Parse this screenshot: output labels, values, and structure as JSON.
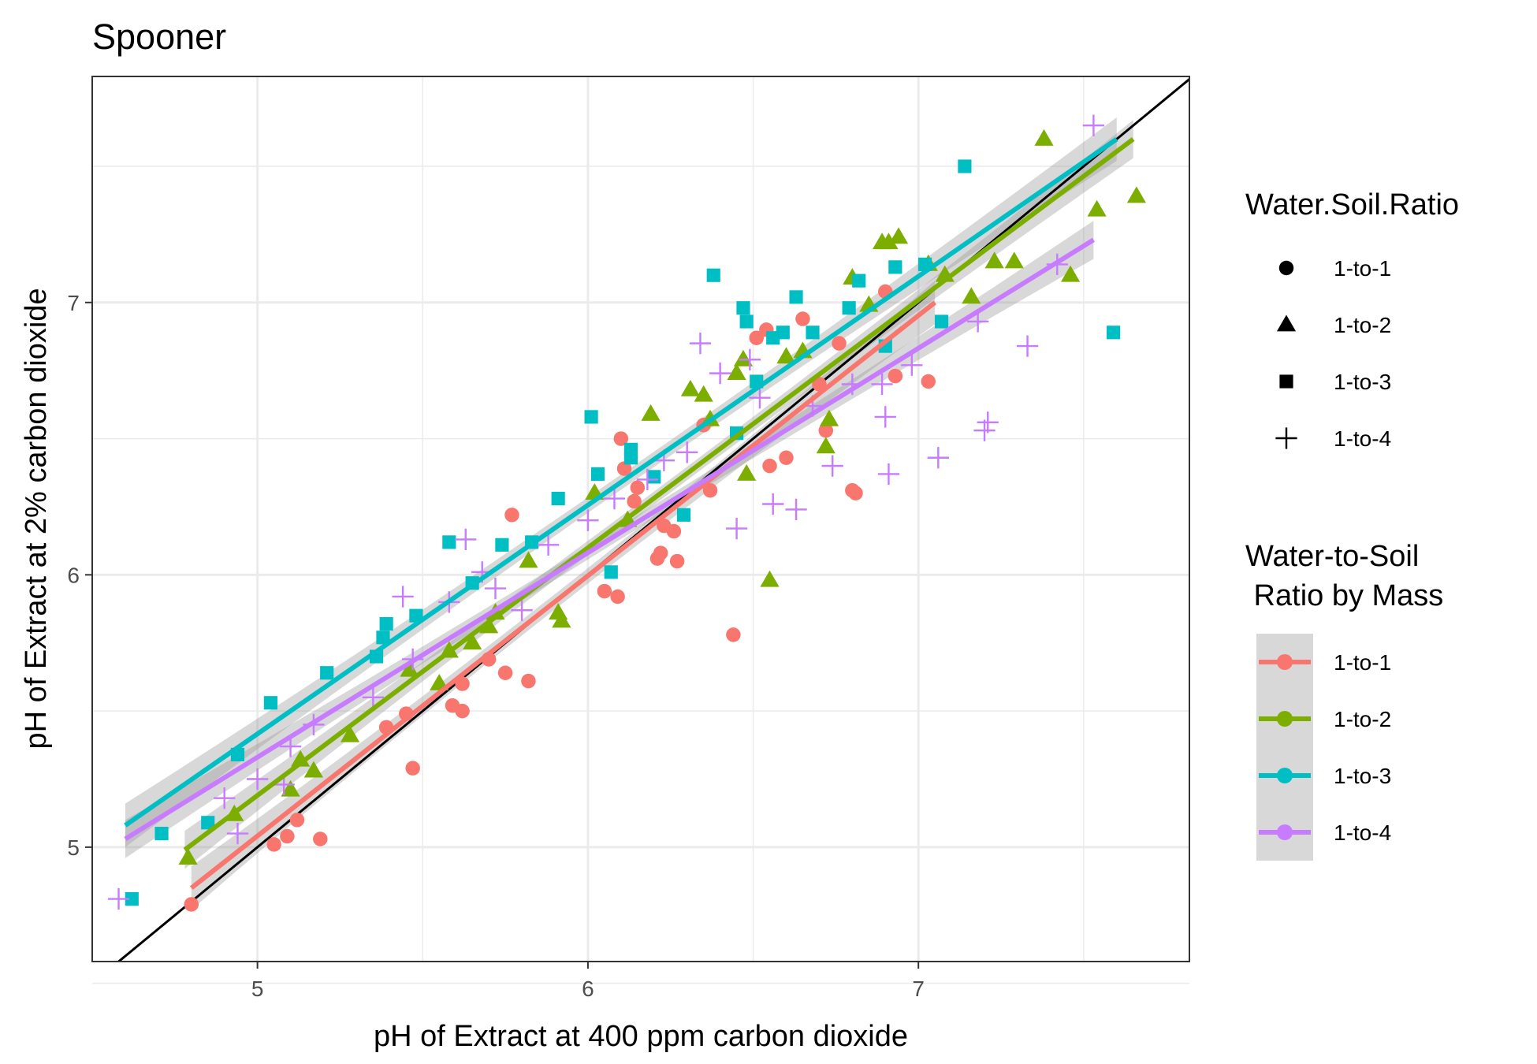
{
  "chart_data": {
    "type": "scatter",
    "title": "Spooner",
    "xlabel": "pH of Extract at 400 ppm carbon dioxide",
    "ylabel": "pH of Extract at 2% carbon dioxide",
    "xlim": [
      4.5,
      7.82
    ],
    "ylim": [
      4.58,
      7.83
    ],
    "x_ticks": [
      "5",
      "6",
      "7"
    ],
    "y_ticks": [
      "5",
      "6",
      "7"
    ],
    "grid": true,
    "reference_line": {
      "slope": 1,
      "intercept": 0,
      "color": "#000000"
    },
    "legend_shape": {
      "title": "Water.Soil.Ratio",
      "entries": [
        {
          "label": "1-to-1",
          "shape": "circle"
        },
        {
          "label": "1-to-2",
          "shape": "triangle"
        },
        {
          "label": "1-to-3",
          "shape": "square"
        },
        {
          "label": "1-to-4",
          "shape": "plus"
        }
      ]
    },
    "legend_color": {
      "title_line1": "Water-to-Soil",
      "title_line2": " Ratio by Mass",
      "entries": [
        {
          "label": "1-to-1",
          "color": "#F8766D"
        },
        {
          "label": "1-to-2",
          "color": "#7CAE00"
        },
        {
          "label": "1-to-3",
          "color": "#00BFC4"
        },
        {
          "label": "1-to-4",
          "color": "#C77CFF"
        }
      ]
    },
    "series": [
      {
        "name": "1-to-1",
        "shape": "circle",
        "color": "#F8766D",
        "fit": {
          "x": [
            4.8,
            7.05
          ],
          "y": [
            4.85,
            7.0
          ],
          "band": 0.08
        },
        "points": [
          [
            4.8,
            4.79
          ],
          [
            5.05,
            5.01
          ],
          [
            5.09,
            5.04
          ],
          [
            5.12,
            5.1
          ],
          [
            5.19,
            5.03
          ],
          [
            5.39,
            5.44
          ],
          [
            5.45,
            5.49
          ],
          [
            5.47,
            5.29
          ],
          [
            5.59,
            5.52
          ],
          [
            5.62,
            5.5
          ],
          [
            5.62,
            5.6
          ],
          [
            5.7,
            5.69
          ],
          [
            5.75,
            5.64
          ],
          [
            5.77,
            6.22
          ],
          [
            5.82,
            5.61
          ],
          [
            6.05,
            5.94
          ],
          [
            6.09,
            5.92
          ],
          [
            6.1,
            6.5
          ],
          [
            6.11,
            6.39
          ],
          [
            6.14,
            6.27
          ],
          [
            6.15,
            6.32
          ],
          [
            6.21,
            6.06
          ],
          [
            6.22,
            6.08
          ],
          [
            6.23,
            6.18
          ],
          [
            6.26,
            6.16
          ],
          [
            6.27,
            6.05
          ],
          [
            6.35,
            6.55
          ],
          [
            6.37,
            6.31
          ],
          [
            6.44,
            5.78
          ],
          [
            6.51,
            6.87
          ],
          [
            6.54,
            6.9
          ],
          [
            6.55,
            6.4
          ],
          [
            6.6,
            6.43
          ],
          [
            6.65,
            6.94
          ],
          [
            6.7,
            6.7
          ],
          [
            6.72,
            6.53
          ],
          [
            6.76,
            6.85
          ],
          [
            6.8,
            6.31
          ],
          [
            6.81,
            6.3
          ],
          [
            6.9,
            7.04
          ],
          [
            6.93,
            6.73
          ],
          [
            7.03,
            6.71
          ]
        ]
      },
      {
        "name": "1-to-2",
        "shape": "triangle",
        "color": "#7CAE00",
        "fit": {
          "x": [
            4.78,
            7.65
          ],
          "y": [
            4.99,
            7.6
          ],
          "band": 0.07
        },
        "points": [
          [
            4.79,
            4.96
          ],
          [
            4.93,
            5.12
          ],
          [
            5.1,
            5.21
          ],
          [
            5.13,
            5.32
          ],
          [
            5.17,
            5.28
          ],
          [
            5.28,
            5.41
          ],
          [
            5.46,
            5.65
          ],
          [
            5.55,
            5.6
          ],
          [
            5.58,
            5.72
          ],
          [
            5.65,
            5.75
          ],
          [
            5.7,
            5.81
          ],
          [
            5.72,
            5.86
          ],
          [
            5.82,
            6.05
          ],
          [
            5.91,
            5.86
          ],
          [
            5.92,
            5.83
          ],
          [
            6.02,
            6.3
          ],
          [
            6.12,
            6.2
          ],
          [
            6.19,
            6.59
          ],
          [
            6.31,
            6.68
          ],
          [
            6.35,
            6.66
          ],
          [
            6.37,
            6.57
          ],
          [
            6.45,
            6.74
          ],
          [
            6.47,
            6.79
          ],
          [
            6.48,
            6.37
          ],
          [
            6.55,
            5.98
          ],
          [
            6.6,
            6.8
          ],
          [
            6.65,
            6.82
          ],
          [
            6.72,
            6.47
          ],
          [
            6.73,
            6.57
          ],
          [
            6.8,
            7.09
          ],
          [
            6.85,
            6.99
          ],
          [
            6.89,
            7.22
          ],
          [
            6.91,
            7.22
          ],
          [
            6.94,
            7.24
          ],
          [
            7.03,
            7.14
          ],
          [
            7.08,
            7.1
          ],
          [
            7.16,
            7.02
          ],
          [
            7.23,
            7.15
          ],
          [
            7.29,
            7.15
          ],
          [
            7.38,
            7.6
          ],
          [
            7.46,
            7.1
          ],
          [
            7.54,
            7.34
          ],
          [
            7.66,
            7.39
          ]
        ]
      },
      {
        "name": "1-to-3",
        "shape": "square",
        "color": "#00BFC4",
        "fit": {
          "x": [
            4.6,
            7.6
          ],
          "y": [
            5.08,
            7.6
          ],
          "band": 0.08
        },
        "points": [
          [
            4.62,
            4.81
          ],
          [
            4.71,
            5.05
          ],
          [
            4.85,
            5.09
          ],
          [
            4.94,
            5.34
          ],
          [
            5.04,
            5.53
          ],
          [
            5.21,
            5.64
          ],
          [
            5.36,
            5.7
          ],
          [
            5.38,
            5.77
          ],
          [
            5.39,
            5.82
          ],
          [
            5.48,
            5.85
          ],
          [
            5.58,
            6.12
          ],
          [
            5.65,
            5.97
          ],
          [
            5.74,
            6.11
          ],
          [
            5.83,
            6.12
          ],
          [
            5.91,
            6.28
          ],
          [
            6.01,
            6.58
          ],
          [
            6.03,
            6.37
          ],
          [
            6.07,
            6.01
          ],
          [
            6.13,
            6.46
          ],
          [
            6.13,
            6.43
          ],
          [
            6.2,
            6.36
          ],
          [
            6.29,
            6.22
          ],
          [
            6.38,
            7.1
          ],
          [
            6.45,
            6.52
          ],
          [
            6.47,
            6.98
          ],
          [
            6.48,
            6.93
          ],
          [
            6.51,
            6.71
          ],
          [
            6.56,
            6.87
          ],
          [
            6.59,
            6.89
          ],
          [
            6.63,
            7.02
          ],
          [
            6.68,
            6.89
          ],
          [
            6.79,
            6.98
          ],
          [
            6.82,
            7.08
          ],
          [
            6.9,
            6.84
          ],
          [
            6.93,
            7.13
          ],
          [
            7.02,
            7.14
          ],
          [
            7.07,
            6.93
          ],
          [
            7.14,
            7.5
          ],
          [
            7.59,
            6.89
          ]
        ]
      },
      {
        "name": "1-to-4",
        "shape": "plus",
        "color": "#C77CFF",
        "fit": {
          "x": [
            4.6,
            7.53
          ],
          "y": [
            5.03,
            7.23
          ],
          "band": 0.07
        },
        "points": [
          [
            4.58,
            4.81
          ],
          [
            4.9,
            5.18
          ],
          [
            4.94,
            5.05
          ],
          [
            5.0,
            5.25
          ],
          [
            5.08,
            5.23
          ],
          [
            5.1,
            5.37
          ],
          [
            5.17,
            5.45
          ],
          [
            5.35,
            5.55
          ],
          [
            5.44,
            5.92
          ],
          [
            5.47,
            5.69
          ],
          [
            5.58,
            5.9
          ],
          [
            5.63,
            6.13
          ],
          [
            5.68,
            6.01
          ],
          [
            5.72,
            5.95
          ],
          [
            5.8,
            5.87
          ],
          [
            5.88,
            6.11
          ],
          [
            6.0,
            6.2
          ],
          [
            6.08,
            6.28
          ],
          [
            6.18,
            6.35
          ],
          [
            6.23,
            6.42
          ],
          [
            6.3,
            6.45
          ],
          [
            6.34,
            6.85
          ],
          [
            6.4,
            6.74
          ],
          [
            6.45,
            6.17
          ],
          [
            6.49,
            6.79
          ],
          [
            6.52,
            6.65
          ],
          [
            6.56,
            6.26
          ],
          [
            6.63,
            6.24
          ],
          [
            6.68,
            6.62
          ],
          [
            6.74,
            6.4
          ],
          [
            6.8,
            6.7
          ],
          [
            6.89,
            6.7
          ],
          [
            6.9,
            6.58
          ],
          [
            6.91,
            6.37
          ],
          [
            6.98,
            6.77
          ],
          [
            7.06,
            6.43
          ],
          [
            7.18,
            6.93
          ],
          [
            7.2,
            6.53
          ],
          [
            7.21,
            6.56
          ],
          [
            7.33,
            6.84
          ],
          [
            7.42,
            7.14
          ],
          [
            7.53,
            7.65
          ]
        ]
      }
    ]
  }
}
